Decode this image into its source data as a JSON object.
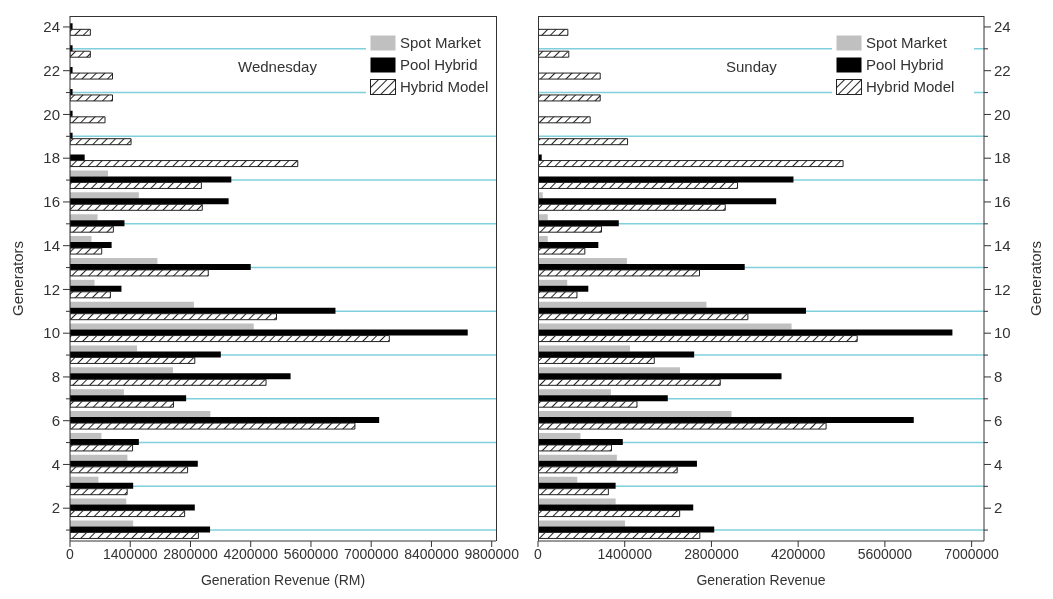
{
  "chart_data": [
    {
      "type": "bar",
      "orientation": "horizontal",
      "title": "Wednesday",
      "xlabel": "Generation Revenue (RM)",
      "ylabel": "Generators",
      "legend": "top right",
      "grid": "y",
      "categories": [
        "24",
        null,
        "22",
        null,
        "20",
        null,
        "18",
        null,
        "16",
        null,
        "14",
        null,
        "12",
        null,
        "10",
        null,
        "8",
        null,
        "6",
        null,
        "4",
        null,
        "2",
        null
      ],
      "xlim": [
        0,
        9900000
      ],
      "xticks": [
        0,
        1400000,
        2800000,
        4200000,
        5600000,
        7000000,
        8400000,
        9800000
      ],
      "series": [
        {
          "name": "Spot Market",
          "color": "#c0c0c0",
          "values": [
            0,
            0,
            0,
            0,
            0,
            0,
            0,
            883000,
            1600000,
            640000,
            500000,
            2031000,
            570000,
            2879000,
            4270000,
            1558000,
            2393000,
            1252000,
            3262000,
            730000,
            1335000,
            660000,
            1308000,
            1468000
          ]
        },
        {
          "name": "Pool Hybrid",
          "color": "#000000",
          "values": [
            60000,
            60000,
            60000,
            60000,
            60000,
            60000,
            341000,
            3749000,
            3686000,
            1266000,
            967000,
            4200000,
            1196000,
            6169000,
            9243000,
            3505000,
            5126000,
            2699000,
            7185000,
            1600000,
            2970000,
            1468000,
            2900000,
            3255000
          ]
        },
        {
          "name": "Hybrid Model",
          "color": "#222222",
          "values": [
            473000,
            473000,
            988000,
            988000,
            814000,
            1419000,
            5293000,
            3053000,
            3074000,
            1008000,
            737000,
            3213000,
            939000,
            4799000,
            7421000,
            2900000,
            4556000,
            2406000,
            6621000,
            1454000,
            2733000,
            1328000,
            2664000,
            2984000
          ]
        }
      ]
    },
    {
      "type": "bar",
      "orientation": "horizontal",
      "title": "Sunday",
      "xlabel": "Generation Revenue",
      "ylabel": "Generators",
      "legend": "top right",
      "grid": "y",
      "categories": [
        "24",
        null,
        "22",
        null,
        "20",
        null,
        "18",
        null,
        "16",
        null,
        "14",
        null,
        "12",
        null,
        "10",
        null,
        "8",
        null,
        "6",
        null,
        "4",
        null,
        "2",
        null
      ],
      "xlim": [
        0,
        7200000
      ],
      "xticks": [
        0,
        1400000,
        2800000,
        4200000,
        5600000,
        7000000
      ],
      "series": [
        {
          "name": "Spot Market",
          "color": "#c0c0c0",
          "values": [
            0,
            0,
            0,
            0,
            0,
            0,
            0,
            0,
            76000,
            157000,
            157000,
            1435000,
            472000,
            2719000,
            4093000,
            1486000,
            2293000,
            1177000,
            3124000,
            685000,
            1273000,
            634000,
            1253000,
            1405000
          ]
        },
        {
          "name": "Pool Hybrid",
          "color": "#000000",
          "values": [
            0,
            0,
            0,
            0,
            0,
            0,
            60000,
            4124000,
            3845000,
            1304000,
            974000,
            3337000,
            812000,
            4326000,
            6690000,
            2521000,
            3931000,
            2095000,
            6066000,
            1369000,
            2566000,
            1253000,
            2506000,
            2845000
          ]
        },
        {
          "name": "Hybrid Model",
          "color": "#222222",
          "values": [
            482000,
            497000,
            1004000,
            1004000,
            842000,
            1446000,
            4925000,
            3221000,
            3023000,
            1025000,
            756000,
            2607000,
            629000,
            3388000,
            5153000,
            1877000,
            2942000,
            1598000,
            4651000,
            1187000,
            2247000,
            1136000,
            2287000,
            2612000
          ]
        }
      ]
    }
  ]
}
